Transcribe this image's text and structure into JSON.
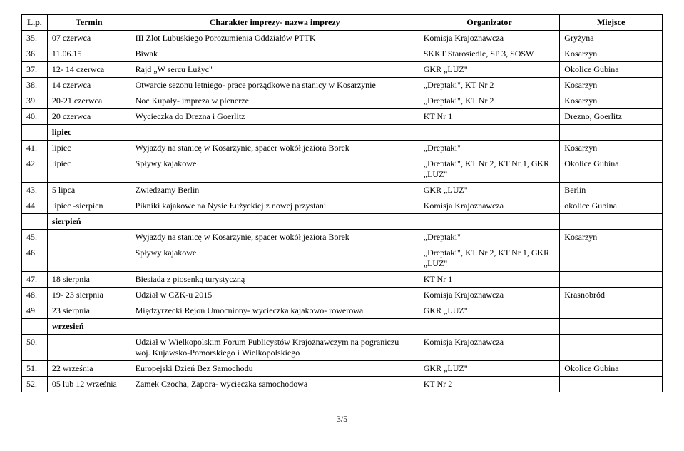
{
  "headers": {
    "lp": "L.p.",
    "termin": "Termin",
    "charakter": "Charakter imprezy- nazwa imprezy",
    "organizator": "Organizator",
    "miejsce": "Miejsce"
  },
  "section_labels": {
    "lipiec": "lipiec",
    "sierpien": "sierpień",
    "wrzesien": "wrzesień"
  },
  "rows": [
    {
      "lp": "35.",
      "termin": "07 czerwca",
      "charakter": "III Zlot Lubuskiego Porozumienia Oddziałów PTTK",
      "organizator": "Komisja Krajoznawcza",
      "miejsce": "Gryżyna"
    },
    {
      "lp": "36.",
      "termin": "11.06.15",
      "charakter": "Biwak",
      "organizator": "SKKT Starosiedle, SP 3, SOSW",
      "miejsce": "Kosarzyn"
    },
    {
      "lp": "37.",
      "termin": "12- 14 czerwca",
      "charakter": "Rajd „W sercu Łużyc\"",
      "organizator": "GKR „LUZ\"",
      "miejsce": "Okolice Gubina"
    },
    {
      "lp": "38.",
      "termin": "14 czerwca",
      "charakter": "Otwarcie sezonu letniego- prace porządkowe na stanicy w Kosarzynie",
      "organizator": "„Dreptaki\", KT Nr 2",
      "miejsce": "Kosarzyn"
    },
    {
      "lp": "39.",
      "termin": "20-21 czerwca",
      "charakter": "Noc Kupały- impreza w plenerze",
      "organizator": "„Dreptaki\", KT Nr 2",
      "miejsce": "Kosarzyn"
    },
    {
      "lp": "40.",
      "termin": "20 czerwca",
      "charakter": "Wycieczka do Drezna i Goerlitz",
      "organizator": "KT Nr 1",
      "miejsce": "Drezno, Goerlitz"
    },
    {
      "lp": "41.",
      "termin": "lipiec",
      "charakter": "Wyjazdy na stanicę w Kosarzynie, spacer wokół jeziora Borek",
      "organizator": "„Dreptaki\"",
      "miejsce": "Kosarzyn"
    },
    {
      "lp": "42.",
      "termin": "lipiec",
      "charakter": "Spływy kajakowe",
      "organizator": "„Dreptaki\", KT Nr 2, KT Nr 1, GKR „LUZ\"",
      "miejsce": "Okolice Gubina"
    },
    {
      "lp": "43.",
      "termin": "5 lipca",
      "charakter": "Zwiedzamy Berlin",
      "organizator": "GKR „LUZ\"",
      "miejsce": "Berlin"
    },
    {
      "lp": "44.",
      "termin": "lipiec -sierpień",
      "charakter": "Pikniki kajakowe na Nysie Łużyckiej z nowej przystani",
      "organizator": "Komisja Krajoznawcza",
      "miejsce": "okolice Gubina"
    },
    {
      "lp": "45.",
      "termin": "",
      "charakter": "Wyjazdy na stanicę w Kosarzynie, spacer wokół jeziora Borek",
      "organizator": "„Dreptaki\"",
      "miejsce": "Kosarzyn"
    },
    {
      "lp": "46.",
      "termin": "",
      "charakter": "Spływy kajakowe",
      "organizator": "„Dreptaki\", KT Nr 2, KT Nr 1, GKR „LUZ\"",
      "miejsce": ""
    },
    {
      "lp": "47.",
      "termin": "18 sierpnia",
      "charakter": "Biesiada z piosenką turystyczną",
      "organizator": "KT Nr 1",
      "miejsce": ""
    },
    {
      "lp": "48.",
      "termin": "19- 23 sierpnia",
      "charakter": "Udział w CZK-u 2015",
      "organizator": "Komisja Krajoznawcza",
      "miejsce": "Krasnobród"
    },
    {
      "lp": "49.",
      "termin": "23 sierpnia",
      "charakter": "Międzyrzecki Rejon Umocniony- wycieczka kajakowo- rowerowa",
      "organizator": "GKR „LUZ\"",
      "miejsce": ""
    },
    {
      "lp": "50.",
      "termin": "",
      "charakter": "Udział w Wielkopolskim Forum Publicystów Krajoznawczym na pograniczu woj. Kujawsko-Pomorskiego i Wielkopolskiego",
      "organizator": "Komisja Krajoznawcza",
      "miejsce": ""
    },
    {
      "lp": "51.",
      "termin": "22 września",
      "charakter": "Europejski Dzień Bez Samochodu",
      "organizator": "GKR „LUZ\"",
      "miejsce": "Okolice Gubina"
    },
    {
      "lp": "52.",
      "termin": "05 lub 12 września",
      "charakter": "Zamek Czocha, Zapora- wycieczka samochodowa",
      "organizator": "KT Nr 2",
      "miejsce": ""
    }
  ],
  "page_number": "3/5"
}
